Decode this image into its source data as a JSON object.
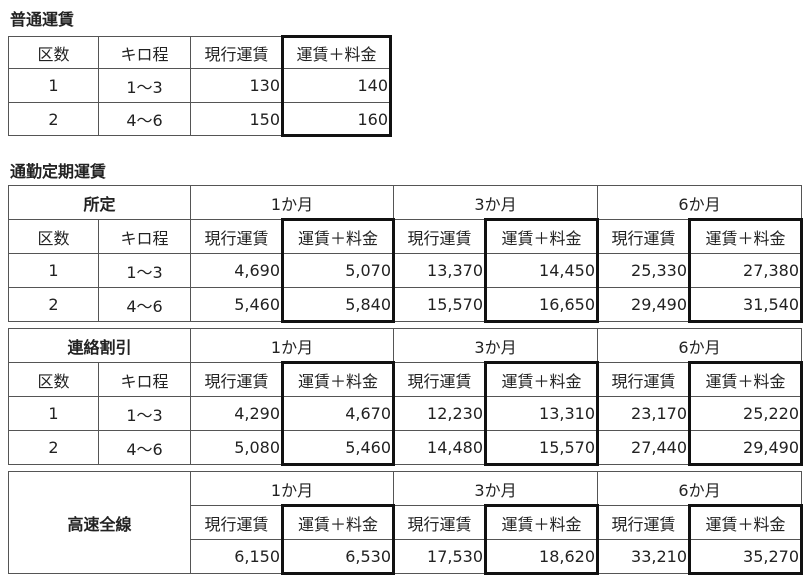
{
  "fare": {
    "title": "普通運賃",
    "header": [
      "区数",
      "キロ程",
      "現行運賃",
      "運賃＋料金"
    ],
    "rows": [
      [
        "1",
        "1〜3",
        "130",
        "140"
      ],
      [
        "2",
        "4〜6",
        "150",
        "160"
      ]
    ]
  },
  "commuter": {
    "title": "通勤定期運賃",
    "sections": [
      {
        "label": "所定",
        "periods": [
          "1か月",
          "3か月",
          "6か月"
        ],
        "header": [
          "区数",
          "キロ程",
          "現行運賃",
          "運賃＋料金",
          "現行運賃",
          "運賃＋料金",
          "現行運賃",
          "運賃＋料金"
        ],
        "rows": [
          [
            "1",
            "1〜3",
            "4,690",
            "5,070",
            "13,370",
            "14,450",
            "25,330",
            "27,380"
          ],
          [
            "2",
            "4〜6",
            "5,460",
            "5,840",
            "15,570",
            "16,650",
            "29,490",
            "31,540"
          ]
        ]
      },
      {
        "label": "連絡割引",
        "periods": [
          "1か月",
          "3か月",
          "6か月"
        ],
        "header": [
          "区数",
          "キロ程",
          "現行運賃",
          "運賃＋料金",
          "現行運賃",
          "運賃＋料金",
          "現行運賃",
          "運賃＋料金"
        ],
        "rows": [
          [
            "1",
            "1〜3",
            "4,290",
            "4,670",
            "12,230",
            "13,310",
            "23,170",
            "25,220"
          ],
          [
            "2",
            "4〜6",
            "5,080",
            "5,460",
            "14,480",
            "15,570",
            "27,440",
            "29,490"
          ]
        ]
      },
      {
        "label": "高速全線",
        "periods": [
          "1か月",
          "3か月",
          "6か月"
        ],
        "header": [
          "現行運賃",
          "運賃＋料金",
          "現行運賃",
          "運賃＋料金",
          "現行運賃",
          "運賃＋料金"
        ],
        "rows": [
          [
            "6,150",
            "6,530",
            "17,530",
            "18,620",
            "33,210",
            "35,270"
          ]
        ]
      }
    ]
  }
}
